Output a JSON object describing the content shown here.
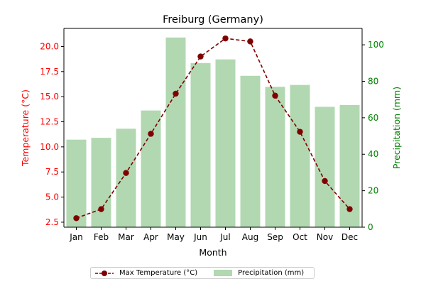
{
  "chart_data": {
    "type": "bar+line",
    "title": "Freiburg (Germany)",
    "xlabel": "Month",
    "categories": [
      "Jan",
      "Feb",
      "Mar",
      "Apr",
      "May",
      "Jun",
      "Jul",
      "Aug",
      "Sep",
      "Oct",
      "Nov",
      "Dec"
    ],
    "left_axis": {
      "label": "Temperature (°C)",
      "color": "#ff0000",
      "range": [
        2.0,
        21.8
      ],
      "ticks": [
        2.5,
        5.0,
        7.5,
        10.0,
        12.5,
        15.0,
        17.5,
        20.0
      ],
      "tick_labels": [
        "2.5",
        "5.0",
        "7.5",
        "10.0",
        "12.5",
        "15.0",
        "17.5",
        "20.0"
      ]
    },
    "right_axis": {
      "label": "Precipitation (mm)",
      "color": "#008000",
      "range": [
        0,
        109
      ],
      "ticks": [
        0,
        20,
        40,
        60,
        80,
        100
      ],
      "tick_labels": [
        "0",
        "20",
        "40",
        "60",
        "80",
        "100"
      ]
    },
    "series": [
      {
        "name": "Max Temperature (°C)",
        "kind": "line",
        "axis": "left",
        "color": "#800000",
        "line_style": "dashed",
        "marker": "circle",
        "values": [
          2.9,
          3.8,
          7.4,
          11.3,
          15.3,
          19.0,
          20.8,
          20.5,
          15.1,
          11.5,
          6.6,
          3.8
        ]
      },
      {
        "name": "Precipitation (mm)",
        "kind": "bar",
        "axis": "right",
        "color": "#b2d8b2",
        "values": [
          48,
          49,
          54,
          64,
          104,
          90,
          92,
          83,
          77,
          78,
          66,
          67
        ]
      }
    ],
    "legend_position": "bottom-center",
    "grid": false
  }
}
